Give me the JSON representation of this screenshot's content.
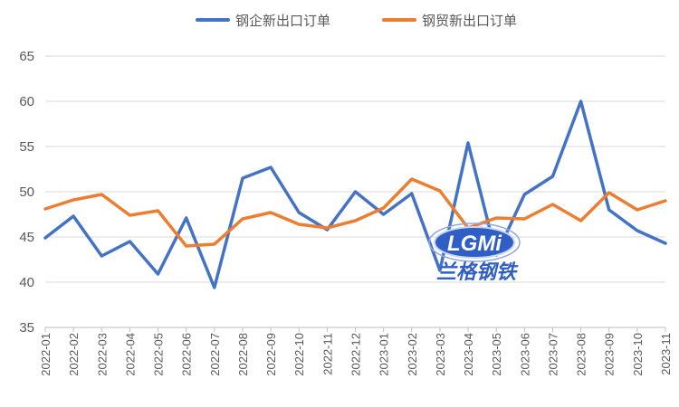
{
  "chart_data": {
    "type": "line",
    "title": "",
    "xlabel": "",
    "ylabel": "",
    "ylim": [
      35,
      65
    ],
    "yticks": [
      35,
      40,
      45,
      50,
      55,
      60,
      65
    ],
    "grid": "horizontal",
    "legend_position": "top",
    "categories": [
      "2022-01",
      "2022-02",
      "2022-03",
      "2022-04",
      "2022-05",
      "2022-06",
      "2022-07",
      "2022-08",
      "2022-09",
      "2022-10",
      "2022-11",
      "2022-12",
      "2023-01",
      "2023-02",
      "2023-03",
      "2023-04",
      "2023-05",
      "2023-06",
      "2023-07",
      "2023-08",
      "2023-09",
      "2023-10",
      "2023-11"
    ],
    "series": [
      {
        "name": "钢企新出口订单",
        "color": "#4472c4",
        "values": [
          44.9,
          47.3,
          42.9,
          44.5,
          40.9,
          47.1,
          39.4,
          51.5,
          52.7,
          47.7,
          45.8,
          50.0,
          47.5,
          49.8,
          41.3,
          55.4,
          43.0,
          49.7,
          51.7,
          60.0,
          48.0,
          45.7,
          44.3
        ]
      },
      {
        "name": "钢贸新出口订单",
        "color": "#ed7d31",
        "values": [
          48.1,
          49.1,
          49.7,
          47.4,
          47.9,
          44.0,
          44.2,
          47.0,
          47.7,
          46.4,
          46.0,
          46.8,
          48.2,
          51.4,
          50.1,
          46.0,
          47.1,
          47.0,
          48.6,
          46.8,
          49.9,
          48.0,
          49.0
        ]
      }
    ]
  },
  "watermark": {
    "logo_text": "LGMi",
    "caption": "兰格钢铁"
  }
}
